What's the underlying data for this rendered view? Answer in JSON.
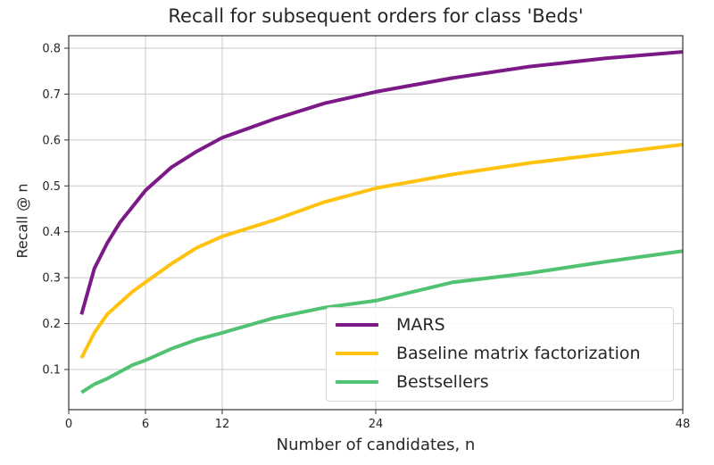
{
  "chart_data": {
    "type": "line",
    "title": "Recall for subsequent orders for class 'Beds'",
    "xlabel": "Number of candidates, n",
    "ylabel": "Recall @ n",
    "xlim": [
      0,
      48
    ],
    "ylim": [
      0.015,
      0.83
    ],
    "xticks": [
      0,
      6,
      12,
      24,
      48
    ],
    "yticks": [
      0.1,
      0.2,
      0.3,
      0.4,
      0.5,
      0.6,
      0.7,
      0.8
    ],
    "grid": true,
    "legend_position": "lower right",
    "x": [
      1,
      2,
      3,
      4,
      5,
      6,
      8,
      10,
      12,
      16,
      20,
      24,
      30,
      36,
      42,
      48
    ],
    "series": [
      {
        "name": "MARS",
        "color": "#7b1a86",
        "values": [
          0.22,
          0.32,
          0.375,
          0.42,
          0.455,
          0.49,
          0.54,
          0.575,
          0.605,
          0.645,
          0.68,
          0.705,
          0.735,
          0.76,
          0.778,
          0.792
        ]
      },
      {
        "name": "Baseline matrix factorization",
        "color": "#ffc20e",
        "values": [
          0.125,
          0.18,
          0.22,
          0.245,
          0.27,
          0.29,
          0.33,
          0.365,
          0.39,
          0.425,
          0.465,
          0.495,
          0.525,
          0.55,
          0.57,
          0.59
        ]
      },
      {
        "name": "Bestsellers",
        "color": "#50c271",
        "values": [
          0.05,
          0.068,
          0.08,
          0.095,
          0.11,
          0.12,
          0.145,
          0.165,
          0.18,
          0.212,
          0.235,
          0.25,
          0.29,
          0.31,
          0.335,
          0.358
        ]
      }
    ]
  }
}
